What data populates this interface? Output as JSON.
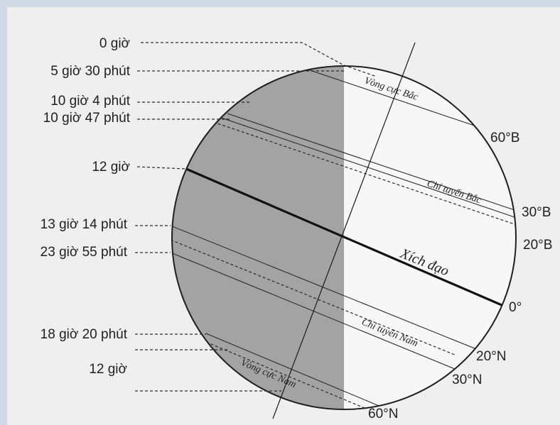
{
  "time_labels": {
    "t0": "0 giờ",
    "t1": "5 giờ 30 phút",
    "t2": "10 giờ 4 phút",
    "t3": "10 giờ 47 phút",
    "t4": "12 giờ",
    "t5": "13 giờ 14 phút",
    "t6": "23 giờ 55 phút",
    "t7": "18 giờ 20 phút",
    "t8": "12 giờ"
  },
  "latitude_labels": {
    "lat60n": "60°B",
    "lat30n": "30°B",
    "lat20n": "20°B",
    "lat0": "0°",
    "lat20s": "20°N",
    "lat30s": "30°N",
    "lat60s": "60°N"
  },
  "circle_labels": {
    "arctic": "Vòng cực Bắc",
    "tropic_cancer": "Chí tuyến Bắc",
    "equator": "Xích đạo",
    "tropic_capricorn": "Chí tuyến Nam",
    "antarctic": "Vòng cực Nam"
  },
  "colors": {
    "night_side": "#a3a3a3",
    "day_side": "#f7f7f7",
    "background": "#efefef"
  }
}
